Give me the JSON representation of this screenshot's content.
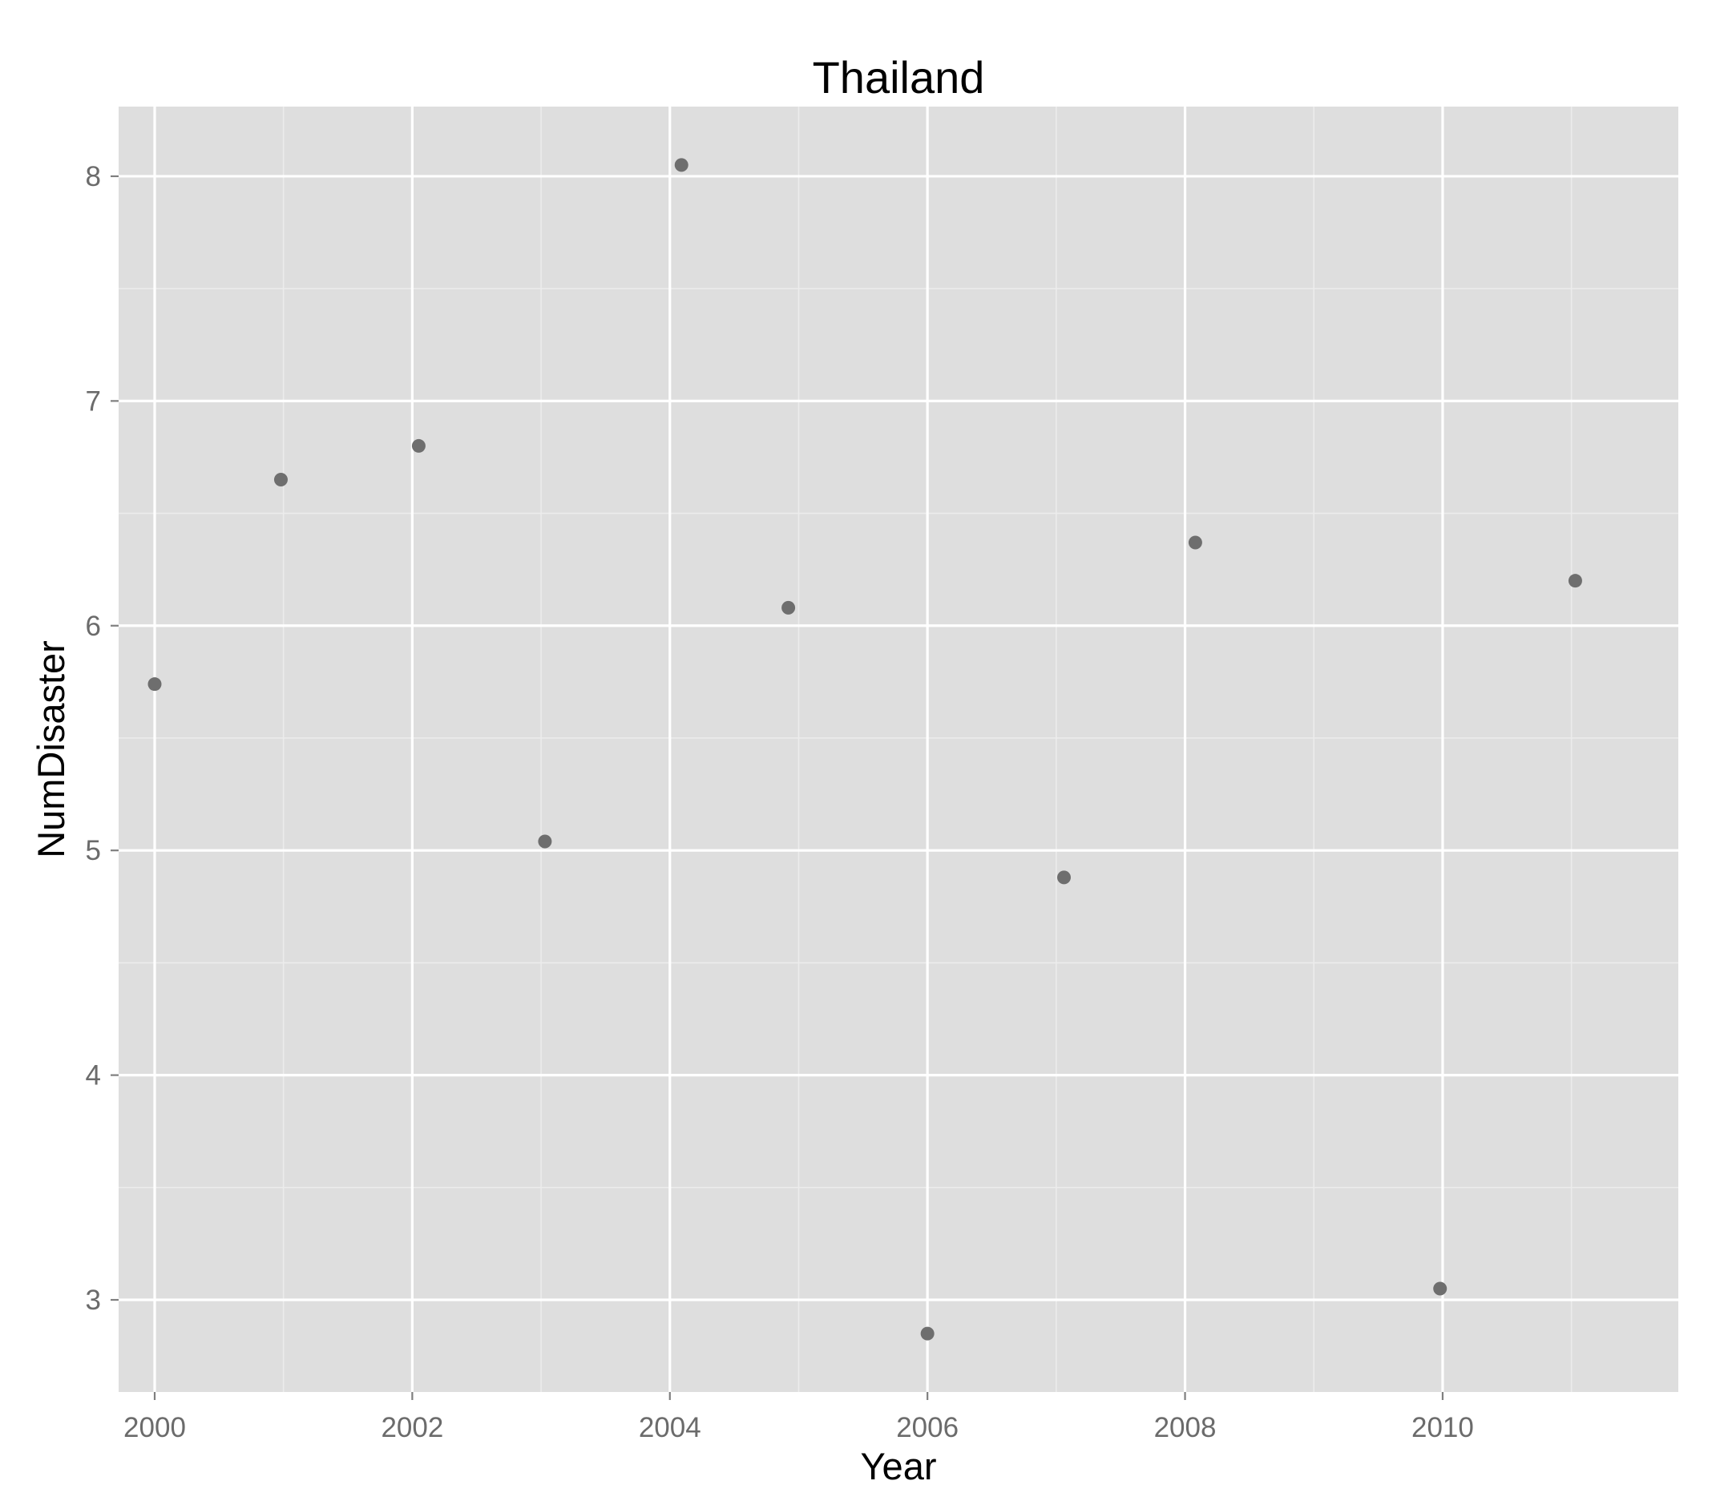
{
  "chart_data": {
    "type": "scatter",
    "title": "Thailand",
    "xlabel": "Year",
    "ylabel": "NumDisaster",
    "xlim": [
      1999.72,
      2011.83
    ],
    "ylim": [
      2.59,
      8.31
    ],
    "x_ticks": [
      2000,
      2002,
      2004,
      2006,
      2008,
      2010
    ],
    "x_tick_labels": [
      "2000",
      "2002",
      "2004",
      "2006",
      "2008",
      "2010"
    ],
    "y_ticks": [
      3,
      4,
      5,
      6,
      7,
      8
    ],
    "y_tick_labels": [
      "3",
      "4",
      "5",
      "6",
      "7",
      "8"
    ],
    "grid": true,
    "colors": {
      "panel_background": "#dedede",
      "grid_major": "#ffffff",
      "grid_minor": "#ececec",
      "point": "#6e6e6e"
    },
    "series": [
      {
        "x": [
          2000.0,
          2000.98,
          2002.05,
          2003.03,
          2004.09,
          2004.92,
          2006.0,
          2007.06,
          2008.08,
          2009.98,
          2011.03
        ],
        "y": [
          5.74,
          6.65,
          6.8,
          5.04,
          8.05,
          6.08,
          2.85,
          4.88,
          6.37,
          3.05,
          6.2
        ]
      }
    ]
  }
}
